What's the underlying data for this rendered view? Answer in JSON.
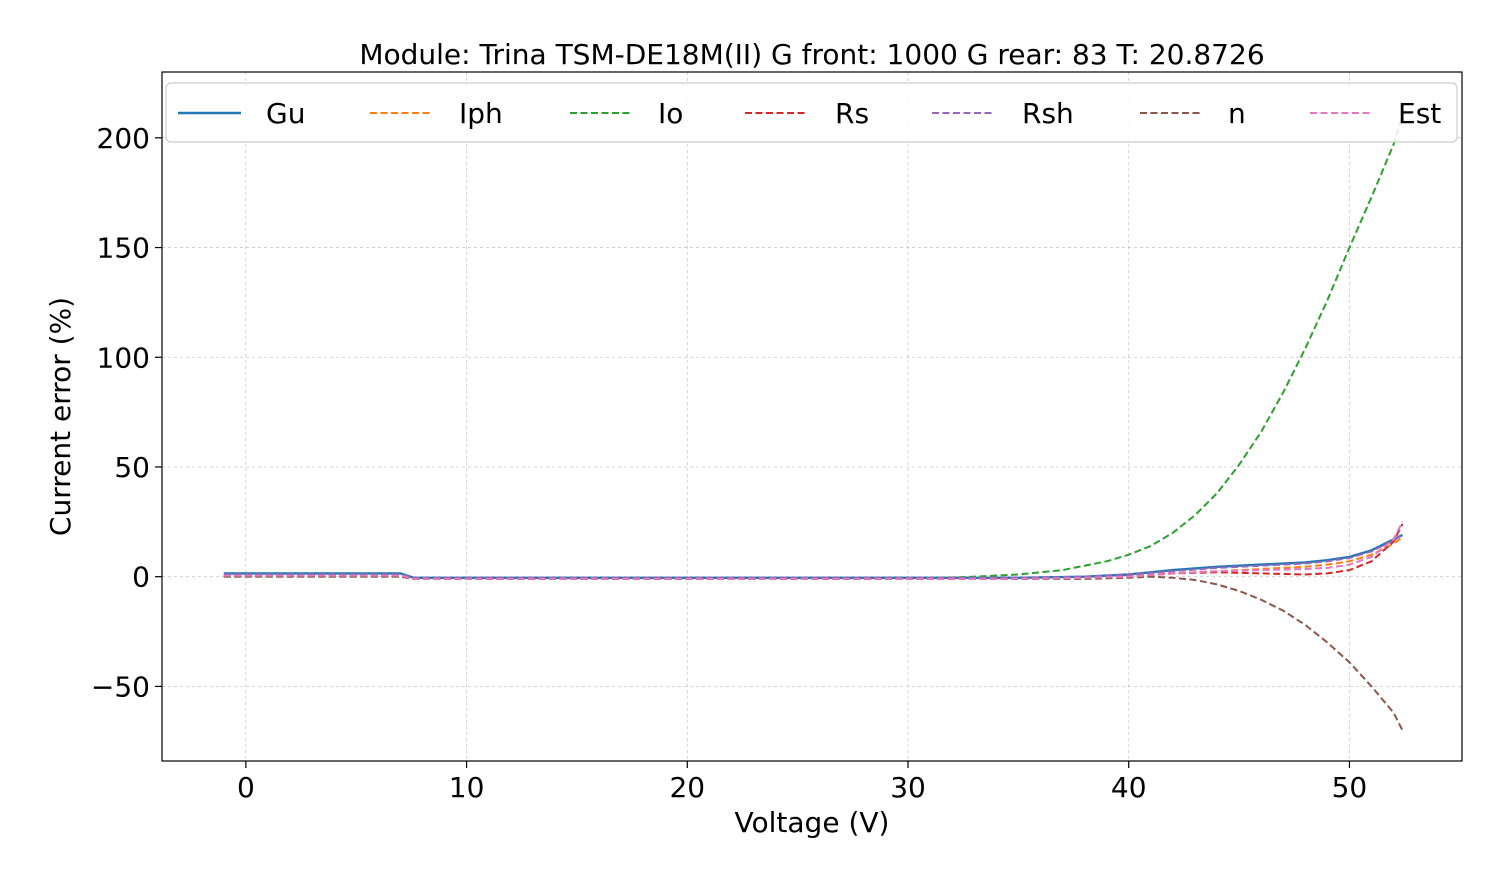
{
  "chart_data": {
    "type": "line",
    "title": "Module: Trina TSM-DE18M(II)  G front: 1000   G rear: 83   T: 20.8726",
    "xlabel": "Voltage (V)",
    "ylabel": "Current error (%)",
    "xlim": [
      -3.8,
      55.1
    ],
    "ylim": [
      -84,
      230
    ],
    "xticks": [
      0,
      10,
      20,
      30,
      40,
      50
    ],
    "xtick_labels": [
      "0",
      "10",
      "20",
      "30",
      "40",
      "50"
    ],
    "yticks": [
      -50,
      0,
      50,
      100,
      150,
      200
    ],
    "ytick_labels": [
      "−50",
      "0",
      "50",
      "100",
      "150",
      "200"
    ],
    "grid": true,
    "legend_position": "top",
    "series": [
      {
        "name": "Gu",
        "color": "#1f77b4",
        "style": "solid",
        "x": [
          -1,
          7,
          7.6,
          10,
          20,
          30,
          35,
          38,
          40,
          42,
          44,
          46,
          48,
          49,
          50,
          51,
          52,
          52.4
        ],
        "y": [
          1.5,
          1.5,
          -0.5,
          -0.5,
          -0.5,
          -0.5,
          -0.5,
          0,
          1,
          3,
          4.5,
          5.5,
          6.5,
          7.5,
          9,
          12,
          17,
          19
        ]
      },
      {
        "name": "Iph",
        "color": "#ff7f0e",
        "style": "dashed",
        "x": [
          -1,
          7,
          7.6,
          10,
          20,
          30,
          35,
          38,
          40,
          42,
          44,
          46,
          48,
          49,
          50,
          51,
          52,
          52.4
        ],
        "y": [
          0.5,
          0.5,
          -1,
          -1,
          -1,
          -1,
          -1,
          -0.5,
          0,
          1.5,
          2.5,
          3.5,
          4.5,
          5.5,
          7,
          10,
          15,
          18
        ]
      },
      {
        "name": "Io",
        "color": "#2ca02c",
        "style": "dashed",
        "x": [
          -1,
          7,
          7.6,
          10,
          20,
          30,
          33,
          35,
          37,
          39,
          40,
          41,
          42,
          43,
          44,
          45,
          46,
          47,
          48,
          49,
          50,
          51,
          52,
          52.4
        ],
        "y": [
          0,
          0,
          -1,
          -1,
          -1,
          -1,
          0,
          1,
          3,
          7,
          10,
          14,
          20,
          28,
          38,
          51,
          66,
          84,
          104,
          126,
          150,
          173,
          197,
          210
        ]
      },
      {
        "name": "Rs",
        "color": "#d62728",
        "style": "dashed",
        "x": [
          -1,
          7,
          7.6,
          10,
          20,
          30,
          35,
          38,
          40,
          42,
          44,
          46,
          48,
          49,
          50,
          51,
          52,
          52.4
        ],
        "y": [
          0.5,
          0.5,
          -1,
          -1,
          -1,
          -1,
          -1,
          -0.5,
          0,
          1.5,
          2,
          1.5,
          1,
          1.5,
          3,
          7,
          16,
          24
        ]
      },
      {
        "name": "Rsh",
        "color": "#9467bd",
        "style": "dashed",
        "x": [
          -1,
          7,
          7.6,
          10,
          20,
          30,
          35,
          38,
          40,
          42,
          44,
          46,
          48,
          49,
          50,
          51,
          52,
          52.4
        ],
        "y": [
          1,
          1,
          -0.5,
          -0.5,
          -0.5,
          -0.5,
          -0.5,
          0,
          1,
          2.5,
          4,
          5,
          6,
          7,
          8.5,
          11.5,
          16.5,
          19
        ]
      },
      {
        "name": "n",
        "color": "#8c564b",
        "style": "dashed",
        "x": [
          -1,
          7,
          7.6,
          10,
          20,
          30,
          35,
          38,
          40,
          41,
          42,
          43,
          44,
          45,
          46,
          47,
          48,
          49,
          50,
          51,
          52,
          52.4
        ],
        "y": [
          0,
          0,
          -1,
          -1,
          -1,
          -1,
          -1,
          -1,
          -0.5,
          0,
          -0.5,
          -1.5,
          -3.5,
          -6.5,
          -10.5,
          -15.5,
          -22,
          -30,
          -39,
          -50,
          -62,
          -70
        ]
      },
      {
        "name": "Est",
        "color": "#e377c2",
        "style": "dashed",
        "x": [
          -1,
          7,
          7.6,
          10,
          20,
          30,
          35,
          38,
          40,
          42,
          44,
          46,
          48,
          49,
          50,
          51,
          52,
          52.4
        ],
        "y": [
          0.5,
          0.5,
          -1,
          -1,
          -1,
          -1,
          -1,
          -0.5,
          0,
          1.5,
          2.5,
          3,
          3.5,
          4,
          5.5,
          9,
          17,
          25
        ]
      }
    ]
  }
}
